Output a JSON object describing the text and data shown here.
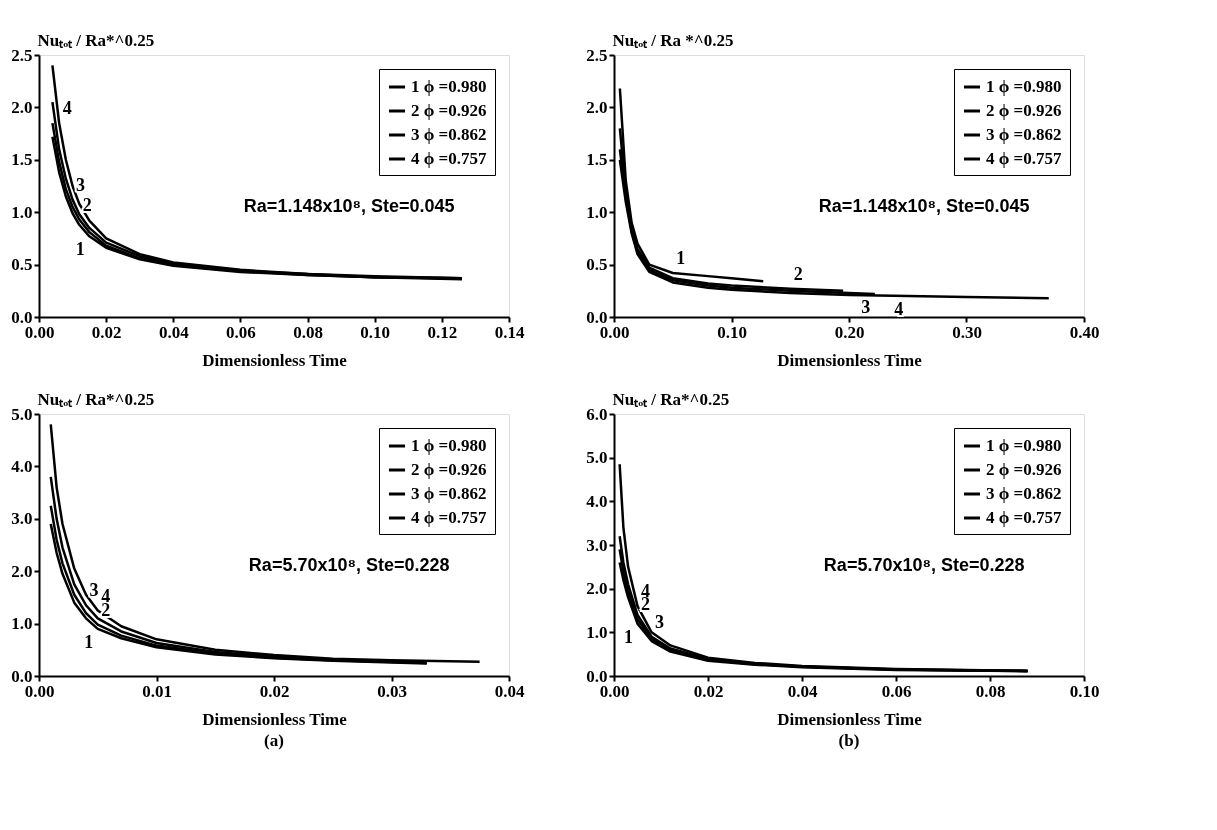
{
  "chart_data": [
    {
      "type": "line",
      "ylabel": "Nuₜₒₜ / Ra*^0.25",
      "xlabel": "Dimensionless Time",
      "xlim": [
        0,
        0.14
      ],
      "xticks": [
        {
          "value": 0,
          "label": "0.00"
        },
        0.02,
        0.04,
        0.06,
        0.08,
        {
          "value": 0.1,
          "label": "0.10"
        },
        0.12,
        0.14
      ],
      "ylim": [
        0,
        2.5
      ],
      "yticks": [
        {
          "value": 0,
          "label": "0.0"
        },
        0.5,
        {
          "value": 1,
          "label": "1.0"
        },
        1.5,
        {
          "value": 2,
          "label": "2.0"
        },
        2.5
      ],
      "legend": "top right",
      "line_style": "solid",
      "marker": "none",
      "x": [
        0.004,
        0.006,
        0.008,
        0.01,
        0.012,
        0.015,
        0.02,
        0.03,
        0.04,
        0.06,
        0.08,
        0.1,
        0.126
      ],
      "series": [
        {
          "name": "1 ϕ =0.980",
          "color": "#000000",
          "values": [
            1.72,
            1.38,
            1.15,
            0.99,
            0.88,
            0.77,
            0.66,
            0.55,
            0.49,
            0.43,
            0.4,
            0.38,
            0.36
          ]
        },
        {
          "name": "2 ϕ =0.926",
          "color": "#000000",
          "values": [
            1.85,
            1.48,
            1.22,
            1.05,
            0.93,
            0.81,
            0.68,
            0.56,
            0.5,
            0.44,
            0.4,
            0.38,
            0.37
          ]
        },
        {
          "name": "3 ϕ =0.862",
          "color": "#000000",
          "values": [
            2.05,
            1.6,
            1.32,
            1.12,
            0.98,
            0.85,
            0.71,
            0.58,
            0.51,
            0.44,
            0.41,
            0.38,
            0.37
          ]
        },
        {
          "name": "4 ϕ =0.757",
          "color": "#000000",
          "values": [
            2.4,
            1.85,
            1.5,
            1.25,
            1.08,
            0.92,
            0.75,
            0.6,
            0.52,
            0.45,
            0.41,
            0.39,
            0.37
          ]
        }
      ],
      "annotations": [
        "Ra=1.148x10⁸, Ste=0.045",
        {
          "text": "4",
          "x": 0.006,
          "y": 1.85
        },
        {
          "text": "3",
          "x": 0.01,
          "y": 1.12
        },
        {
          "text": "2",
          "x": 0.012,
          "y": 0.93
        },
        {
          "text": "1",
          "x": 0.015,
          "y": 0.77
        }
      ]
    },
    {
      "type": "line",
      "ylabel": "Nuₜₒₜ / Ra *^0.25",
      "xlabel": "Dimensionless Time",
      "xlim": [
        0,
        0.4
      ],
      "xticks": [
        {
          "value": 0,
          "label": "0.00"
        },
        {
          "value": 0.1,
          "label": "0.10"
        },
        {
          "value": 0.2,
          "label": "0.20"
        },
        {
          "value": 0.3,
          "label": "0.30"
        },
        {
          "value": 0.4,
          "label": "0.40"
        }
      ],
      "ylim": [
        0,
        2.5
      ],
      "yticks": [
        {
          "value": 0,
          "label": "0.0"
        },
        0.5,
        {
          "value": 1,
          "label": "1.0"
        },
        1.5,
        {
          "value": 2,
          "label": "2.0"
        },
        2.5
      ],
      "legend": "top right",
      "line_style": "solid",
      "marker": "none",
      "series": [
        {
          "name": "1 ϕ =0.980",
          "color": "#000000",
          "x": [
            0.005,
            0.01,
            0.015,
            0.02,
            0.03,
            0.05,
            0.08,
            0.1,
            0.127
          ],
          "values": [
            2.18,
            1.3,
            0.9,
            0.7,
            0.5,
            0.42,
            0.39,
            0.37,
            0.34
          ]
        },
        {
          "name": "2 ϕ =0.926",
          "color": "#000000",
          "x": [
            0.005,
            0.01,
            0.015,
            0.02,
            0.03,
            0.05,
            0.08,
            0.1,
            0.15,
            0.195
          ],
          "values": [
            1.8,
            1.2,
            0.85,
            0.65,
            0.47,
            0.37,
            0.32,
            0.3,
            0.27,
            0.25
          ]
        },
        {
          "name": "3 ϕ =0.862",
          "color": "#000000",
          "x": [
            0.005,
            0.01,
            0.015,
            0.02,
            0.03,
            0.05,
            0.08,
            0.1,
            0.15,
            0.222
          ],
          "values": [
            1.6,
            1.15,
            0.82,
            0.62,
            0.45,
            0.35,
            0.3,
            0.28,
            0.25,
            0.22
          ]
        },
        {
          "name": "4 ϕ =0.757",
          "color": "#000000",
          "x": [
            0.005,
            0.01,
            0.015,
            0.02,
            0.03,
            0.05,
            0.08,
            0.1,
            0.15,
            0.2,
            0.25,
            0.3,
            0.37
          ],
          "values": [
            1.5,
            1.1,
            0.8,
            0.6,
            0.43,
            0.33,
            0.28,
            0.26,
            0.23,
            0.21,
            0.2,
            0.19,
            0.18
          ]
        }
      ],
      "annotations": [
        "Ra=1.148x10⁸, Ste=0.045",
        {
          "text": "1",
          "x": 0.05,
          "y": 0.42
        },
        {
          "text": "2",
          "x": 0.15,
          "y": 0.27
        },
        {
          "text": "3",
          "x": 0.222,
          "y": 0.22
        },
        {
          "text": "4",
          "x": 0.25,
          "y": 0.2
        }
      ]
    },
    {
      "type": "line",
      "ylabel": "Nuₜₒₜ / Ra*^0.25",
      "xlabel": "Dimensionless Time",
      "xlim": [
        0,
        0.04
      ],
      "xticks": [
        {
          "value": 0,
          "label": "0.00"
        },
        0.01,
        0.02,
        0.03,
        0.04
      ],
      "ylim": [
        0,
        5
      ],
      "yticks": [
        {
          "value": 0,
          "label": "0.0"
        },
        {
          "value": 1,
          "label": "1.0"
        },
        {
          "value": 2,
          "label": "2.0"
        },
        {
          "value": 3,
          "label": "3.0"
        },
        {
          "value": 4,
          "label": "4.0"
        },
        {
          "value": 5,
          "label": "5.0"
        }
      ],
      "legend": "top right",
      "line_style": "solid",
      "marker": "none",
      "series": [
        {
          "name": "1 ϕ =0.980",
          "color": "#000000",
          "x": [
            0.001,
            0.0015,
            0.002,
            0.003,
            0.004,
            0.005,
            0.007,
            0.01,
            0.015,
            0.02,
            0.025,
            0.033
          ],
          "values": [
            2.9,
            2.35,
            1.95,
            1.4,
            1.1,
            0.9,
            0.72,
            0.55,
            0.41,
            0.34,
            0.29,
            0.24
          ]
        },
        {
          "name": "2 ϕ =0.926",
          "color": "#000000",
          "x": [
            0.001,
            0.0015,
            0.002,
            0.003,
            0.004,
            0.005,
            0.007,
            0.01,
            0.015,
            0.02,
            0.025,
            0.033
          ],
          "values": [
            3.25,
            2.6,
            2.15,
            1.55,
            1.2,
            0.98,
            0.77,
            0.58,
            0.43,
            0.35,
            0.3,
            0.25
          ]
        },
        {
          "name": "3 ϕ =0.862",
          "color": "#000000",
          "x": [
            0.001,
            0.0015,
            0.002,
            0.003,
            0.004,
            0.005,
            0.007,
            0.01,
            0.015,
            0.02,
            0.025,
            0.033
          ],
          "values": [
            3.8,
            3.0,
            2.45,
            1.75,
            1.35,
            1.1,
            0.85,
            0.63,
            0.46,
            0.37,
            0.31,
            0.26
          ]
        },
        {
          "name": "4 ϕ =0.757",
          "color": "#000000",
          "x": [
            0.001,
            0.0015,
            0.002,
            0.003,
            0.004,
            0.005,
            0.007,
            0.01,
            0.015,
            0.02,
            0.025,
            0.03,
            0.0375
          ],
          "values": [
            4.8,
            3.6,
            2.9,
            2.05,
            1.55,
            1.25,
            0.95,
            0.7,
            0.5,
            0.4,
            0.33,
            0.3,
            0.27
          ]
        }
      ],
      "annotations": [
        "Ra=5.70x10⁸, Ste=0.228",
        "(a)",
        {
          "text": "4",
          "x": 0.005,
          "y": 1.25
        },
        {
          "text": "3",
          "x": 0.004,
          "y": 1.35
        },
        {
          "text": "2",
          "x": 0.005,
          "y": 0.98
        },
        {
          "text": "1",
          "x": 0.005,
          "y": 0.9
        }
      ]
    },
    {
      "type": "line",
      "ylabel": "Nuₜₒₜ / Ra*^0.25",
      "xlabel": "Dimensionless Time",
      "xlim": [
        0,
        0.1
      ],
      "xticks": [
        {
          "value": 0,
          "label": "0.00"
        },
        0.02,
        0.04,
        0.06,
        0.08,
        {
          "value": 0.1,
          "label": "0.10"
        }
      ],
      "ylim": [
        0,
        6
      ],
      "yticks": [
        {
          "value": 0,
          "label": "0.0"
        },
        {
          "value": 1,
          "label": "1.0"
        },
        {
          "value": 2,
          "label": "2.0"
        },
        {
          "value": 3,
          "label": "3.0"
        },
        {
          "value": 4,
          "label": "4.0"
        },
        {
          "value": 5,
          "label": "5.0"
        },
        {
          "value": 6,
          "label": "6.0"
        }
      ],
      "legend": "top right",
      "line_style": "solid",
      "marker": "none",
      "x": [
        0.0012,
        0.002,
        0.003,
        0.005,
        0.008,
        0.012,
        0.02,
        0.03,
        0.04,
        0.06,
        0.088
      ],
      "series": [
        {
          "name": "1 ϕ =0.980",
          "color": "#000000",
          "values": [
            2.6,
            2.2,
            1.8,
            1.2,
            0.8,
            0.56,
            0.35,
            0.26,
            0.2,
            0.14,
            0.11
          ]
        },
        {
          "name": "2 ϕ =0.926",
          "color": "#000000",
          "values": [
            2.9,
            2.4,
            1.95,
            1.3,
            0.85,
            0.6,
            0.37,
            0.27,
            0.21,
            0.15,
            0.11
          ]
        },
        {
          "name": "3 ϕ =0.862",
          "color": "#000000",
          "values": [
            3.2,
            2.6,
            2.1,
            1.4,
            0.9,
            0.63,
            0.39,
            0.28,
            0.22,
            0.15,
            0.12
          ]
        },
        {
          "name": "4 ϕ =0.757",
          "color": "#000000",
          "values": [
            4.85,
            3.4,
            2.5,
            1.6,
            1.0,
            0.7,
            0.42,
            0.3,
            0.23,
            0.16,
            0.12
          ]
        }
      ],
      "annotations": [
        "Ra=5.70x10⁸, Ste=0.228",
        "(b)",
        {
          "text": "4",
          "x": 0.005,
          "y": 1.6
        },
        {
          "text": "2",
          "x": 0.005,
          "y": 1.3
        },
        {
          "text": "3",
          "x": 0.008,
          "y": 0.9
        },
        {
          "text": "1",
          "x": 0.005,
          "y": 1.2
        }
      ]
    }
  ]
}
